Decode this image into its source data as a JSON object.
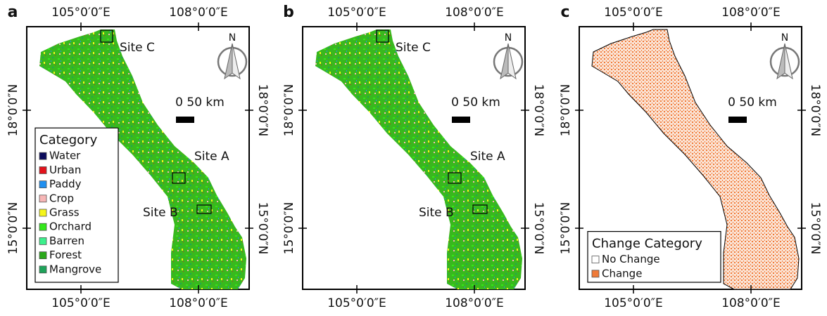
{
  "panels": [
    {
      "label": "a",
      "sites": [
        "Site C",
        "Site A",
        "Site B"
      ],
      "legend": {
        "title": "Category",
        "items": [
          {
            "name": "Water",
            "color": "#0b0b5c"
          },
          {
            "name": "Urban",
            "color": "#e3121b"
          },
          {
            "name": "Paddy",
            "color": "#1f8ff0"
          },
          {
            "name": "Crop",
            "color": "#f7b6b6"
          },
          {
            "name": "Grass",
            "color": "#f5f51a"
          },
          {
            "name": "Orchard",
            "color": "#33e81a"
          },
          {
            "name": "Barren",
            "color": "#3cf08c"
          },
          {
            "name": "Forest",
            "color": "#2aa81a"
          },
          {
            "name": "Mangrove",
            "color": "#1ea35a"
          }
        ]
      }
    },
    {
      "label": "b",
      "sites": [
        "Site C",
        "Site A",
        "Site B"
      ]
    },
    {
      "label": "c",
      "legend": {
        "title": "Change Category",
        "items": [
          {
            "name": "No Change",
            "color": "#ffffff"
          },
          {
            "name": "Change",
            "color": "#f07a38"
          }
        ]
      }
    }
  ],
  "lon_labels": [
    "105°0′0″E",
    "108°0′0″E"
  ],
  "lat_labels": [
    "18°0′0″N",
    "15°0′0″N"
  ],
  "north": "N",
  "scale": "0 50 km"
}
